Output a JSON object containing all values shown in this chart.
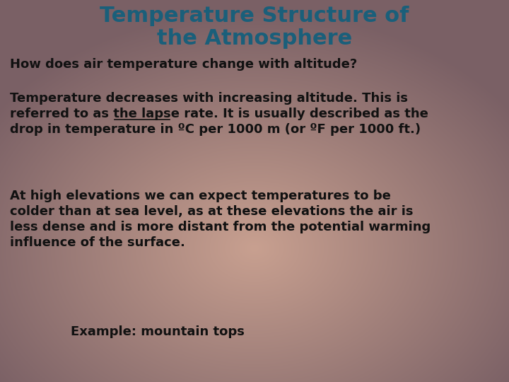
{
  "title_line1": "Temperature Structure of",
  "title_line2": "the Atmosphere",
  "title_color": "#1a5f7a",
  "title_fontsize": 22,
  "subtitle": "How does air temperature change with altitude?",
  "subtitle_fontsize": 13,
  "para1_line1": "Temperature decreases with increasing altitude. This is",
  "para1_line2_pre": "referred to as the ",
  "para1_line2_underline": "lapse rate",
  "para1_line2_post": ". It is usually described as the",
  "para1_line3": "drop in temperature in ºC per 1000 m (or ºF per 1000 ft.)",
  "para1_fontsize": 13,
  "para2_line1": "At high elevations we can expect temperatures to be",
  "para2_line2": "colder than at sea level, as at these elevations the air is",
  "para2_line3": "less dense and is more distant from the potential warming",
  "para2_line4": "influence of the surface.",
  "para2_fontsize": 13,
  "example": "Example: mountain tops",
  "example_fontsize": 13,
  "text_color": "#111111",
  "figsize": [
    7.2,
    5.4
  ],
  "dpi": 100
}
